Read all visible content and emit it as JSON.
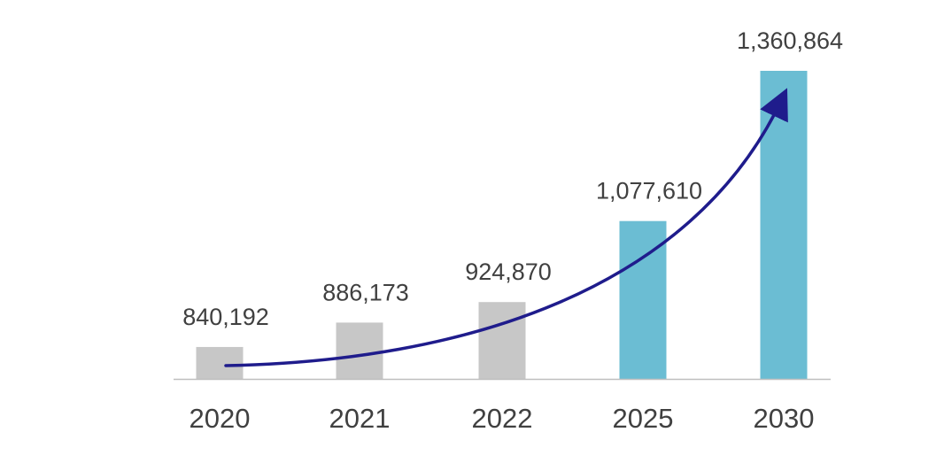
{
  "chart_data": {
    "type": "bar",
    "categories": [
      "2020",
      "2021",
      "2022",
      "2025",
      "2030"
    ],
    "values": [
      840192,
      886173,
      924870,
      1077610,
      1360864
    ],
    "value_labels": [
      "840,192",
      "886,173",
      "924,870",
      "1,077,610",
      "1,360,864"
    ],
    "ylim": [
      780000,
      1360864
    ],
    "grid": false,
    "legend": "none",
    "trend_arrow": true
  },
  "colors": {
    "actual": "#c7c7c7",
    "projected": "#6bbdd3",
    "arrow": "#1f1c8c",
    "axis": "#bfbfbf",
    "text": "#404040"
  },
  "bar_colors": [
    "actual",
    "actual",
    "actual",
    "projected",
    "projected"
  ]
}
